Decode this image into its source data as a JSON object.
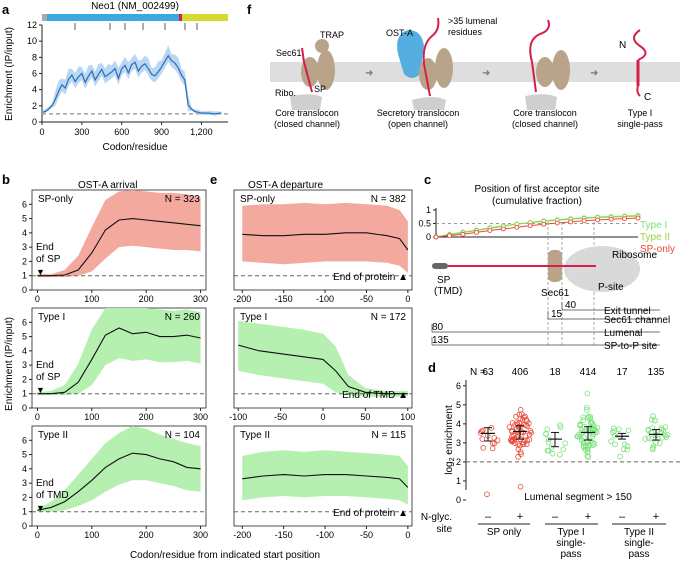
{
  "figure": {
    "panels": {
      "a": "a",
      "b": "b",
      "c": "c",
      "d": "d",
      "e": "e",
      "f": "f"
    }
  },
  "colors": {
    "sp_only": "#e8493a",
    "sp_only_band": "#f4a99f",
    "type1": "#7ae07a",
    "type1_band": "#b5f0b0",
    "type2": "#bfe36a",
    "trace_a": "#2a6db5",
    "trace_a_band": "#b9d6f2",
    "gene_bar": "#3aa9e0",
    "gene_bar_end": "#d3d92e",
    "ost": "#55aee0",
    "protein": "#b9a48a"
  },
  "panel_a": {
    "gene_label": "Neo1 (NM_002499)",
    "ylabel": "Enrichment (IP/input)",
    "xlabel": "Codon/residue",
    "yticks": [
      "0",
      "2",
      "4",
      "6",
      "8",
      "10",
      "12"
    ],
    "xticks": [
      "0",
      "300",
      "600",
      "900",
      "1,200"
    ]
  },
  "panel_f": {
    "labels": {
      "trap": "TRAP",
      "sec61": "Sec61",
      "ribo": "Ribo.",
      "sp": "SP",
      "osta": "OST-A",
      "lumenal": ">35 lumenal",
      "residues": "residues",
      "n": "N",
      "c": "C"
    },
    "captions": [
      {
        "l1": "Core translocon",
        "l2": "(closed channel)"
      },
      {
        "l1": "Secretory translocon",
        "l2": "(open channel)"
      },
      {
        "l1": "Core translocon",
        "l2": "(closed channel)"
      },
      {
        "l1": "Type I",
        "l2": "single-pass"
      }
    ]
  },
  "panel_b": {
    "title": "OST-A arrival",
    "ylabel": "Enrichment (IP/input)",
    "xlabel": "Codon/residue from indicated start position",
    "xticks": [
      "0",
      "100",
      "200",
      "300"
    ],
    "subplots": [
      {
        "name": "SP-only",
        "n": "N = 323",
        "marker1": "End",
        "marker2": "of SP"
      },
      {
        "name": "Type I",
        "n": "N = 260",
        "marker1": "End",
        "marker2": "of SP"
      },
      {
        "name": "Type II",
        "n": "N = 104",
        "marker1": "End",
        "marker2": "of TMD"
      }
    ]
  },
  "panel_e": {
    "title": "OST-A departure",
    "xticks_top": [
      "-200",
      "-150",
      "-100",
      "-50",
      "0"
    ],
    "xticks_mid": [
      "-100",
      "-50",
      "0",
      "50",
      "100"
    ],
    "xticks_bot": [
      "-200",
      "-150",
      "-100",
      "-50",
      "0"
    ],
    "subplots": [
      {
        "name": "SP-only",
        "n": "N = 382",
        "marker": "End of protein ▲"
      },
      {
        "name": "Type I",
        "n": "N = 172",
        "marker": "End of TMD ▲"
      },
      {
        "name": "Type II",
        "n": "N = 115",
        "marker": "End of protein ▲"
      }
    ]
  },
  "panel_c": {
    "title": "Position of first acceptor site",
    "subtitle": "(cumulative fraction)",
    "legend": [
      "Type I",
      "Type II",
      "SP-only"
    ],
    "yticks": [
      "0",
      "0.5",
      "1"
    ],
    "sp_label1": "SP",
    "sp_label2": "(TMD)",
    "sec61": "Sec61",
    "psite": "P-site",
    "ribosome": "Ribosome",
    "distances": [
      {
        "num": "40",
        "label": "Exit tunnel"
      },
      {
        "num": "15",
        "label": "Sec61 channel"
      },
      {
        "num": "80",
        "label": "Lumenal"
      },
      {
        "num": "135",
        "label": "SP-to-P site"
      }
    ]
  },
  "panel_d": {
    "ylabel": "log2 enrichment",
    "ylabel_main": "log",
    "ylabel_sub": "2",
    "ylabel_rest": " enrichment",
    "yticks": [
      "0",
      "1",
      "2",
      "3",
      "4",
      "5",
      "6"
    ],
    "counts_prefix": "N = ",
    "counts": [
      "63",
      "406",
      "18",
      "414",
      "17",
      "135"
    ],
    "nglyc_label1": "N-glyc.",
    "nglyc_label2": "site",
    "signs": [
      "–",
      "+",
      "–",
      "+",
      "–",
      "+"
    ],
    "groups": [
      {
        "l1": "SP only",
        "l2": ""
      },
      {
        "l1": "Type I",
        "l2": "single-",
        "l3": "pass"
      },
      {
        "l1": "Type II",
        "l2": "single-",
        "l3": "pass"
      }
    ],
    "note": "Lumenal segment > 150"
  },
  "chart_data": [
    {
      "id": "a",
      "type": "line",
      "title": "Neo1 (NM_002499)",
      "xlabel": "Codon/residue",
      "ylabel": "Enrichment (IP/input)",
      "xlim": [
        0,
        1400
      ],
      "ylim": [
        0,
        12
      ],
      "x": [
        0,
        25,
        50,
        75,
        100,
        125,
        150,
        175,
        200,
        225,
        250,
        275,
        300,
        325,
        350,
        375,
        400,
        425,
        450,
        475,
        500,
        525,
        550,
        575,
        600,
        625,
        650,
        675,
        700,
        725,
        750,
        775,
        800,
        825,
        850,
        875,
        900,
        925,
        950,
        975,
        1000,
        1025,
        1050,
        1075,
        1100,
        1125,
        1150,
        1175,
        1200,
        1250,
        1300,
        1350
      ],
      "values": [
        1.2,
        1.3,
        1.6,
        2.0,
        2.8,
        3.8,
        4.6,
        4.2,
        5.3,
        5.8,
        5.0,
        5.6,
        6.0,
        4.9,
        5.7,
        6.3,
        5.2,
        5.9,
        6.5,
        5.6,
        5.9,
        6.2,
        6.6,
        5.4,
        6.6,
        7.0,
        6.1,
        7.1,
        7.4,
        6.3,
        6.9,
        7.2,
        6.6,
        5.9,
        5.7,
        6.2,
        6.8,
        7.5,
        8.2,
        7.6,
        7.3,
        6.7,
        5.8,
        5.2,
        2.1,
        1.6,
        1.3,
        1.2,
        1.1,
        1.1,
        1.0,
        1.1
      ],
      "band_halfwidth": 0.8,
      "baseline": 1
    },
    {
      "id": "b",
      "type": "area",
      "title": "OST-A arrival",
      "xlabel": "Codon/residue from indicated start position",
      "ylabel": "Enrichment (IP/input)",
      "series": [
        {
          "name": "SP-only",
          "n": 323,
          "xlim": [
            -10,
            310
          ],
          "ylim": [
            0,
            7
          ],
          "x": [
            0,
            25,
            50,
            75,
            100,
            125,
            150,
            175,
            200,
            225,
            250,
            275,
            300
          ],
          "values": [
            1.0,
            1.0,
            1.05,
            1.4,
            2.6,
            4.2,
            4.9,
            5.0,
            4.9,
            4.8,
            4.7,
            4.6,
            4.5
          ],
          "upper": [
            1.1,
            1.1,
            1.4,
            2.4,
            4.4,
            6.3,
            6.9,
            7.0,
            6.9,
            6.8,
            6.8,
            6.7,
            6.5
          ],
          "lower": [
            0.9,
            0.9,
            0.9,
            1.0,
            1.3,
            2.2,
            3.0,
            3.1,
            3.0,
            2.9,
            2.8,
            2.8,
            2.7
          ]
        },
        {
          "name": "Type I",
          "n": 260,
          "xlim": [
            -10,
            310
          ],
          "ylim": [
            0,
            7
          ],
          "x": [
            0,
            25,
            50,
            75,
            100,
            125,
            150,
            175,
            200,
            225,
            250,
            275,
            300
          ],
          "values": [
            1.0,
            1.0,
            1.1,
            1.8,
            3.4,
            5.1,
            5.6,
            5.2,
            5.3,
            5.0,
            5.0,
            5.1,
            4.9
          ],
          "upper": [
            1.1,
            1.2,
            1.6,
            3.1,
            5.5,
            7.0,
            7.0,
            7.0,
            7.0,
            6.9,
            6.8,
            6.9,
            6.7
          ],
          "lower": [
            0.9,
            0.9,
            0.9,
            1.0,
            1.6,
            3.0,
            3.5,
            3.3,
            3.4,
            3.2,
            3.2,
            3.3,
            3.1
          ]
        },
        {
          "name": "Type II",
          "n": 104,
          "xlim": [
            -10,
            310
          ],
          "ylim": [
            0,
            7
          ],
          "x": [
            0,
            25,
            50,
            75,
            100,
            125,
            150,
            175,
            200,
            225,
            250,
            275,
            300
          ],
          "values": [
            1.1,
            1.3,
            1.7,
            2.4,
            3.2,
            4.1,
            4.7,
            5.1,
            5.0,
            4.7,
            4.5,
            4.1,
            4.0
          ],
          "upper": [
            1.2,
            1.7,
            2.5,
            3.6,
            4.7,
            5.8,
            6.5,
            7.0,
            6.8,
            6.4,
            6.1,
            5.8,
            5.6
          ],
          "lower": [
            1.0,
            1.0,
            1.1,
            1.4,
            1.8,
            2.4,
            2.9,
            3.2,
            3.2,
            3.0,
            2.8,
            2.5,
            2.4
          ]
        }
      ]
    },
    {
      "id": "e",
      "type": "area",
      "title": "OST-A departure",
      "series": [
        {
          "name": "SP-only",
          "n": 382,
          "xlim": [
            -210,
            5
          ],
          "ylim": [
            0,
            7
          ],
          "x": [
            -200,
            -175,
            -150,
            -125,
            -100,
            -75,
            -50,
            -25,
            -10,
            0
          ],
          "values": [
            3.9,
            3.8,
            3.8,
            3.9,
            3.9,
            4.0,
            4.0,
            3.8,
            3.6,
            2.8
          ],
          "upper": [
            5.9,
            6.0,
            6.0,
            6.1,
            6.0,
            6.1,
            6.0,
            5.9,
            5.6,
            4.8
          ],
          "lower": [
            2.0,
            1.9,
            1.8,
            1.9,
            2.0,
            2.0,
            2.0,
            1.9,
            1.7,
            1.2
          ]
        },
        {
          "name": "Type I",
          "n": 172,
          "xlim": [
            -105,
            105
          ],
          "ylim": [
            0,
            7
          ],
          "x": [
            -100,
            -75,
            -50,
            -25,
            0,
            15,
            30,
            50,
            75,
            100
          ],
          "values": [
            4.4,
            4.0,
            3.8,
            3.6,
            3.4,
            2.6,
            1.5,
            1.1,
            1.0,
            1.0
          ],
          "upper": [
            6.1,
            5.9,
            5.7,
            5.5,
            5.2,
            4.3,
            2.3,
            1.4,
            1.2,
            1.2
          ],
          "lower": [
            2.6,
            2.3,
            2.1,
            1.9,
            1.7,
            1.1,
            0.9,
            0.8,
            0.8,
            0.8
          ]
        },
        {
          "name": "Type II",
          "n": 115,
          "xlim": [
            -210,
            5
          ],
          "ylim": [
            0,
            7
          ],
          "x": [
            -200,
            -175,
            -150,
            -125,
            -100,
            -75,
            -50,
            -25,
            -10,
            0
          ],
          "values": [
            3.3,
            3.5,
            3.6,
            3.5,
            3.6,
            3.6,
            3.5,
            3.4,
            3.3,
            2.7
          ],
          "upper": [
            4.9,
            5.2,
            5.3,
            5.2,
            5.3,
            5.2,
            5.1,
            5.0,
            4.9,
            4.2
          ],
          "lower": [
            1.8,
            2.0,
            2.1,
            2.0,
            2.1,
            2.1,
            2.0,
            1.9,
            1.8,
            1.5
          ]
        }
      ]
    },
    {
      "id": "c",
      "type": "line",
      "title": "Position of first acceptor site (cumulative fraction)",
      "ylim": [
        0,
        1
      ],
      "x": [
        0,
        20,
        40,
        60,
        80,
        100,
        120,
        140,
        160,
        180,
        200,
        220,
        240,
        260,
        280,
        300
      ],
      "series": [
        {
          "name": "Type I",
          "values": [
            0.0,
            0.1,
            0.18,
            0.26,
            0.34,
            0.42,
            0.48,
            0.54,
            0.6,
            0.64,
            0.68,
            0.71,
            0.74,
            0.76,
            0.78,
            0.8
          ]
        },
        {
          "name": "Type II",
          "values": [
            0.0,
            0.08,
            0.16,
            0.24,
            0.32,
            0.4,
            0.47,
            0.53,
            0.58,
            0.62,
            0.66,
            0.69,
            0.72,
            0.74,
            0.76,
            0.77
          ]
        },
        {
          "name": "SP-only",
          "values": [
            0.0,
            0.05,
            0.1,
            0.17,
            0.24,
            0.3,
            0.36,
            0.42,
            0.47,
            0.52,
            0.56,
            0.6,
            0.63,
            0.66,
            0.68,
            0.7
          ]
        }
      ]
    },
    {
      "id": "d",
      "type": "scatter",
      "ylabel": "log2 enrichment",
      "ylim": [
        0,
        6.2
      ],
      "categories": [
        "SP only –",
        "SP only +",
        "Type I –",
        "Type I +",
        "Type II –",
        "Type II +"
      ],
      "n": [
        63,
        406,
        18,
        414,
        17,
        135
      ],
      "median": [
        3.5,
        3.6,
        3.2,
        3.55,
        3.35,
        3.45
      ],
      "q1": [
        3.1,
        3.2,
        2.8,
        3.15,
        3.2,
        3.15
      ],
      "q3": [
        3.8,
        3.9,
        3.55,
        3.85,
        3.5,
        3.7
      ],
      "dashed_line": 2
    }
  ]
}
